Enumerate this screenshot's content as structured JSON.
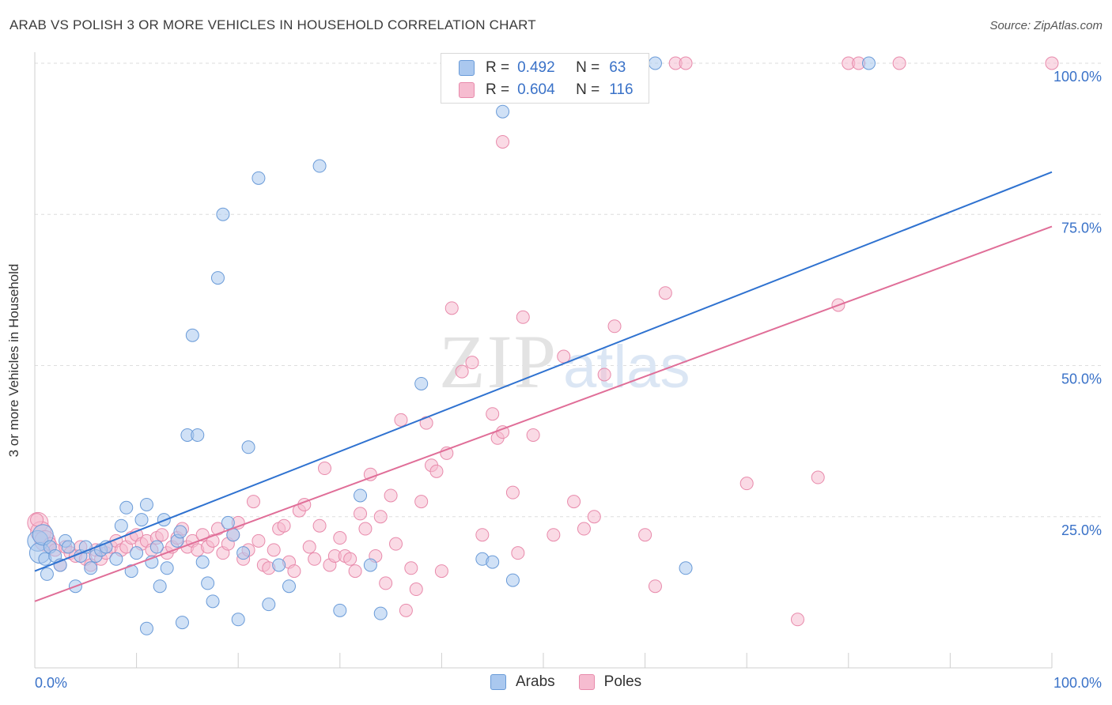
{
  "title": "ARAB VS POLISH 3 OR MORE VEHICLES IN HOUSEHOLD CORRELATION CHART",
  "source": "Source: ZipAtlas.com",
  "watermark": {
    "zip": "ZIP",
    "atlas": "atlas"
  },
  "legend_top": [
    {
      "r_label": "R =",
      "r_value": "0.492",
      "n_label": "N =",
      "n_value": "63"
    },
    {
      "r_label": "R =",
      "r_value": "0.604",
      "n_label": "N =",
      "n_value": "116"
    }
  ],
  "legend_bottom": [
    {
      "label": "Arabs"
    },
    {
      "label": "Poles"
    }
  ],
  "colors": {
    "arabs_fill": "#aac8ef",
    "arabs_stroke": "#6a9bd8",
    "arabs_line": "#2f72d0",
    "poles_fill": "#f6bcd0",
    "poles_stroke": "#e88aab",
    "poles_line": "#e06e98",
    "grid": "#dedede",
    "tick_label": "#3a72c8"
  },
  "chart_data": {
    "type": "scatter",
    "title": "ARAB VS POLISH 3 OR MORE VEHICLES IN HOUSEHOLD CORRELATION CHART",
    "xlabel": "",
    "ylabel": "3 or more Vehicles in Household",
    "xlim": [
      0,
      100
    ],
    "ylim": [
      0,
      100
    ],
    "x_tick_labels": [
      "0.0%",
      "100.0%"
    ],
    "y_tick_labels": [
      "25.0%",
      "50.0%",
      "75.0%",
      "100.0%"
    ],
    "y_ticks": [
      25,
      50,
      75,
      100
    ],
    "grid": true,
    "legend_position": "top-center",
    "series": [
      {
        "name": "Arabs",
        "r": 0.492,
        "n": 63,
        "trend": {
          "x": [
            0,
            100
          ],
          "y": [
            16,
            82
          ]
        },
        "points": [
          [
            0.3,
            21
          ],
          [
            0.5,
            19
          ],
          [
            0.8,
            22
          ],
          [
            1,
            18
          ],
          [
            1.2,
            15.5
          ],
          [
            1.5,
            20
          ],
          [
            2,
            18.5
          ],
          [
            2.5,
            17
          ],
          [
            3,
            21
          ],
          [
            3.3,
            20
          ],
          [
            4,
            13.5
          ],
          [
            4.5,
            18.5
          ],
          [
            5,
            20
          ],
          [
            5.5,
            16.5
          ],
          [
            6,
            18.5
          ],
          [
            6.5,
            19.5
          ],
          [
            7,
            20
          ],
          [
            8,
            18
          ],
          [
            8.5,
            23.5
          ],
          [
            9,
            26.5
          ],
          [
            9.5,
            16
          ],
          [
            10,
            19
          ],
          [
            10.5,
            24.5
          ],
          [
            11,
            27
          ],
          [
            11,
            6.5
          ],
          [
            11.5,
            17.5
          ],
          [
            12,
            20
          ],
          [
            12.3,
            13.5
          ],
          [
            12.7,
            24.5
          ],
          [
            13,
            16.5
          ],
          [
            14,
            21
          ],
          [
            14.3,
            22.5
          ],
          [
            14.5,
            7.5
          ],
          [
            15,
            38.5
          ],
          [
            15.5,
            55
          ],
          [
            16,
            38.5
          ],
          [
            16.5,
            17.5
          ],
          [
            17,
            14
          ],
          [
            17.5,
            11
          ],
          [
            18,
            64.5
          ],
          [
            18.5,
            75
          ],
          [
            19,
            24
          ],
          [
            19.5,
            22
          ],
          [
            20,
            8
          ],
          [
            20.5,
            19
          ],
          [
            21,
            36.5
          ],
          [
            22,
            81
          ],
          [
            23,
            10.5
          ],
          [
            24,
            17
          ],
          [
            25,
            13.5
          ],
          [
            28,
            83
          ],
          [
            30,
            9.5
          ],
          [
            32,
            28.5
          ],
          [
            33,
            17
          ],
          [
            34,
            9
          ],
          [
            38,
            47
          ],
          [
            44,
            18
          ],
          [
            45,
            17.5
          ],
          [
            46,
            92
          ],
          [
            47,
            14.5
          ],
          [
            61,
            100
          ],
          [
            64,
            16.5
          ],
          [
            82,
            100
          ]
        ]
      },
      {
        "name": "Poles",
        "r": 0.604,
        "n": 116,
        "trend": {
          "x": [
            0,
            100
          ],
          "y": [
            11,
            73
          ]
        },
        "points": [
          [
            0.3,
            24
          ],
          [
            0.6,
            22.5
          ],
          [
            1,
            21
          ],
          [
            1.5,
            20.5
          ],
          [
            2,
            19.5
          ],
          [
            2.5,
            17
          ],
          [
            3,
            20
          ],
          [
            3.5,
            19
          ],
          [
            4,
            18.5
          ],
          [
            4.5,
            20
          ],
          [
            5,
            18
          ],
          [
            5.5,
            17
          ],
          [
            6,
            19.5
          ],
          [
            6.5,
            18
          ],
          [
            7,
            19
          ],
          [
            7.5,
            20
          ],
          [
            8,
            21
          ],
          [
            8.5,
            19.5
          ],
          [
            9,
            20
          ],
          [
            9.5,
            21.5
          ],
          [
            10,
            22
          ],
          [
            10.5,
            20.5
          ],
          [
            11,
            21
          ],
          [
            11.5,
            19.5
          ],
          [
            12,
            21.5
          ],
          [
            12.5,
            22
          ],
          [
            13,
            19
          ],
          [
            13.5,
            20
          ],
          [
            14,
            21.5
          ],
          [
            14.5,
            23
          ],
          [
            15,
            20
          ],
          [
            15.5,
            21
          ],
          [
            16,
            19.5
          ],
          [
            16.5,
            22
          ],
          [
            17,
            20
          ],
          [
            17.5,
            21
          ],
          [
            18,
            23
          ],
          [
            18.5,
            19
          ],
          [
            19,
            20.5
          ],
          [
            19.5,
            22
          ],
          [
            20,
            24
          ],
          [
            20.5,
            18
          ],
          [
            21,
            19.5
          ],
          [
            21.5,
            27.5
          ],
          [
            22,
            21
          ],
          [
            22.5,
            17
          ],
          [
            23,
            16.5
          ],
          [
            23.5,
            19.5
          ],
          [
            24,
            23
          ],
          [
            24.5,
            23.5
          ],
          [
            25,
            17.5
          ],
          [
            25.5,
            16
          ],
          [
            26,
            26
          ],
          [
            26.5,
            27
          ],
          [
            27,
            20
          ],
          [
            27.5,
            18
          ],
          [
            28,
            23.5
          ],
          [
            28.5,
            33
          ],
          [
            29,
            17
          ],
          [
            29.5,
            18.5
          ],
          [
            30,
            21.5
          ],
          [
            30.5,
            18.5
          ],
          [
            31,
            18
          ],
          [
            31.5,
            16
          ],
          [
            32,
            25.5
          ],
          [
            32.5,
            23
          ],
          [
            33,
            32
          ],
          [
            33.5,
            18.5
          ],
          [
            34,
            25
          ],
          [
            34.5,
            14
          ],
          [
            35,
            28.5
          ],
          [
            35.5,
            20.5
          ],
          [
            36,
            41
          ],
          [
            36.5,
            9.5
          ],
          [
            37,
            16.5
          ],
          [
            37.5,
            13
          ],
          [
            38,
            27.5
          ],
          [
            38.5,
            40.5
          ],
          [
            39,
            33.5
          ],
          [
            39.5,
            32.5
          ],
          [
            40,
            16
          ],
          [
            40.5,
            35.5
          ],
          [
            41,
            59.5
          ],
          [
            42,
            49
          ],
          [
            43,
            50.5
          ],
          [
            44,
            22
          ],
          [
            45,
            42
          ],
          [
            45.5,
            38
          ],
          [
            46,
            87
          ],
          [
            46,
            39
          ],
          [
            47,
            29
          ],
          [
            47.5,
            19
          ],
          [
            48,
            58
          ],
          [
            49,
            38.5
          ],
          [
            50,
            99.5
          ],
          [
            51,
            22
          ],
          [
            52,
            51.5
          ],
          [
            53,
            27.5
          ],
          [
            54,
            23
          ],
          [
            55,
            25
          ],
          [
            56,
            48.5
          ],
          [
            57,
            56.5
          ],
          [
            60,
            22
          ],
          [
            61,
            13.5
          ],
          [
            62,
            62
          ],
          [
            63,
            100
          ],
          [
            64,
            100
          ],
          [
            70,
            30.5
          ],
          [
            75,
            8
          ],
          [
            77,
            31.5
          ],
          [
            79,
            60
          ],
          [
            80,
            100
          ],
          [
            81,
            100
          ],
          [
            85,
            100
          ],
          [
            100,
            100
          ],
          [
            0.2,
            24.5
          ]
        ]
      }
    ]
  }
}
